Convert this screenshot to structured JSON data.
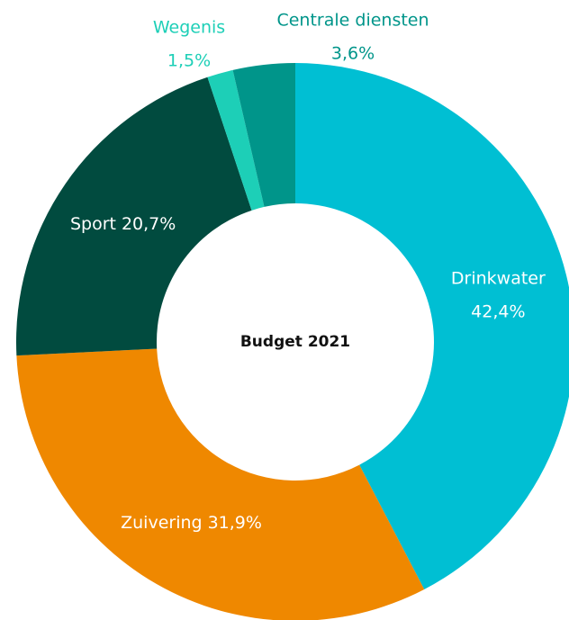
{
  "chart_data": {
    "type": "donut",
    "title": "Budget 2021",
    "categories": [
      "Drinkwater",
      "Zuivering",
      "Sport",
      "Wegenis",
      "Centrale diensten"
    ],
    "values": [
      42.4,
      31.9,
      20.7,
      1.5,
      3.6
    ],
    "value_labels": [
      "42,4%",
      "31,9%",
      "20,7%",
      "1,5%",
      "3,6%"
    ],
    "colors": [
      "#00bfd3",
      "#ef8800",
      "#014b3f",
      "#1dcfb7",
      "#00958a"
    ]
  }
}
